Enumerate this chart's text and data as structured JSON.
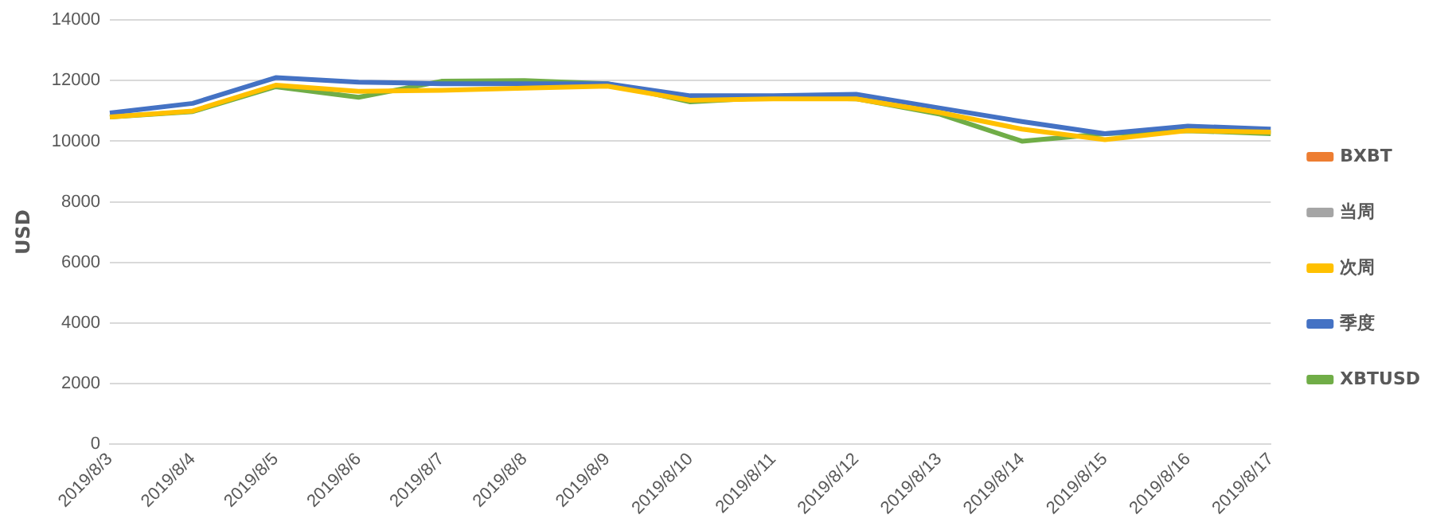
{
  "chart_data": {
    "type": "line",
    "ylabel": "USD",
    "categories": [
      "2019/8/3",
      "2019/8/4",
      "2019/8/5",
      "2019/8/6",
      "2019/8/7",
      "2019/8/8",
      "2019/8/9",
      "2019/8/10",
      "2019/8/11",
      "2019/8/12",
      "2019/8/13",
      "2019/8/14",
      "2019/8/15",
      "2019/8/16",
      "2019/8/17"
    ],
    "series": [
      {
        "name": "BXBT",
        "color": "#ed7d31",
        "values": [
          null,
          null,
          null,
          null,
          null,
          null,
          null,
          null,
          null,
          null,
          null,
          null,
          null,
          null,
          null
        ]
      },
      {
        "name": "当周",
        "color": "#a5a5a5",
        "values": [
          null,
          null,
          null,
          null,
          null,
          null,
          null,
          null,
          null,
          null,
          null,
          null,
          null,
          null,
          null
        ]
      },
      {
        "name": "次周",
        "color": "#ffc000",
        "values": [
          10800,
          11000,
          11850,
          11650,
          11680,
          11750,
          11820,
          11350,
          11400,
          11400,
          10950,
          10400,
          10050,
          10350,
          10300
        ]
      },
      {
        "name": "季度",
        "color": "#4472c4",
        "values": [
          10930,
          11250,
          12100,
          11950,
          11900,
          11900,
          11900,
          11500,
          11500,
          11550,
          11100,
          10650,
          10250,
          10500,
          10400
        ]
      },
      {
        "name": "XBTUSD",
        "color": "#70ad47",
        "values": [
          10800,
          10980,
          11800,
          11450,
          11980,
          12000,
          11900,
          11300,
          11450,
          11400,
          10900,
          10000,
          10250,
          10350,
          10250
        ]
      }
    ],
    "ylim": [
      0,
      14000
    ],
    "yticks": [
      0,
      2000,
      4000,
      6000,
      8000,
      10000,
      12000,
      14000
    ],
    "grid": "y",
    "legend": "right",
    "marker": "none",
    "line_style": "solid"
  }
}
